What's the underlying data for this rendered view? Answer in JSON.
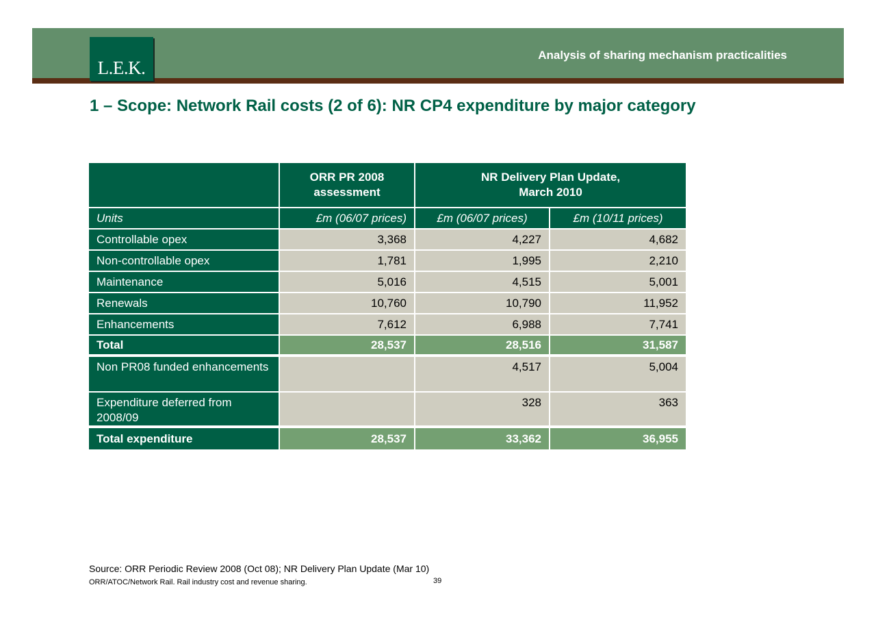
{
  "header": {
    "logo_text": "L.E.K.",
    "title": "Analysis of sharing mechanism practicalities"
  },
  "page_title": "1 – Scope: Network Rail costs (2 of 6): NR CP4 expenditure by major category",
  "table": {
    "headers": {
      "col1": "",
      "orr": "ORR PR 2008 assessment",
      "nr": "NR Delivery Plan Update, March 2010"
    },
    "units": {
      "label": "Units",
      "orr": "£m (06/07 prices)",
      "nr_0607": "£m (06/07 prices)",
      "nr_1011": "£m (10/11 prices)"
    },
    "rows": [
      {
        "label": "Controllable opex",
        "orr": "3,368",
        "nr_0607": "4,227",
        "nr_1011": "4,682"
      },
      {
        "label": "Non-controllable opex",
        "orr": "1,781",
        "nr_0607": "1,995",
        "nr_1011": "2,210"
      },
      {
        "label": "Maintenance",
        "orr": "5,016",
        "nr_0607": "4,515",
        "nr_1011": "5,001"
      },
      {
        "label": "Renewals",
        "orr": "10,760",
        "nr_0607": "10,790",
        "nr_1011": "11,952"
      },
      {
        "label": "Enhancements",
        "orr": "7,612",
        "nr_0607": "6,988",
        "nr_1011": "7,741"
      }
    ],
    "total": {
      "label": "Total",
      "orr": "28,537",
      "nr_0607": "28,516",
      "nr_1011": "31,587"
    },
    "extra_rows": [
      {
        "label": "Non PR08 funded enhancements",
        "orr": "",
        "nr_0607": "4,517",
        "nr_1011": "5,004"
      },
      {
        "label": "Expenditure deferred from 2008/09",
        "orr": "",
        "nr_0607": "328",
        "nr_1011": "363"
      }
    ],
    "total_expenditure": {
      "label": "Total expenditure",
      "orr": "28,537",
      "nr_0607": "33,362",
      "nr_1011": "36,955"
    }
  },
  "footer": {
    "source": "Source: ORR Periodic Review 2008 (Oct 08); NR Delivery Plan Update (Mar 10)",
    "note": "ORR/ATOC/Network Rail.  Rail industry cost and revenue sharing.",
    "page_number": "39"
  },
  "colors": {
    "header_green": "#638f6b",
    "dark_green": "#005f45",
    "total_green": "#74a072",
    "cell_grey": "#cfcdc0",
    "rule_brown": "#5a2d14"
  }
}
